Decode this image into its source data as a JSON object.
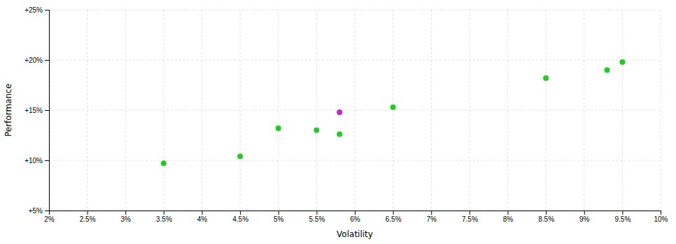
{
  "chart_data": {
    "type": "scatter",
    "xlabel": "Volatility",
    "ylabel": "Performance",
    "xlim": [
      0.02,
      0.1
    ],
    "ylim": [
      0.05,
      0.25
    ],
    "xticks": [
      {
        "value": 0.02,
        "label": "2%"
      },
      {
        "value": 0.025,
        "label": "2.5%"
      },
      {
        "value": 0.03,
        "label": "3%"
      },
      {
        "value": 0.035,
        "label": "3.5%"
      },
      {
        "value": 0.04,
        "label": "4%"
      },
      {
        "value": 0.045,
        "label": "4.5%"
      },
      {
        "value": 0.05,
        "label": "5%"
      },
      {
        "value": 0.055,
        "label": "5.5%"
      },
      {
        "value": 0.06,
        "label": "6%"
      },
      {
        "value": 0.065,
        "label": "6.5%"
      },
      {
        "value": 0.07,
        "label": "7%"
      },
      {
        "value": 0.075,
        "label": "7.5%"
      },
      {
        "value": 0.08,
        "label": "8%"
      },
      {
        "value": 0.085,
        "label": "8.5%"
      },
      {
        "value": 0.09,
        "label": "9%"
      },
      {
        "value": 0.095,
        "label": "9.5%"
      },
      {
        "value": 0.1,
        "label": "10%"
      }
    ],
    "yticks": [
      {
        "value": 0.05,
        "label": "+5%"
      },
      {
        "value": 0.1,
        "label": "+10%"
      },
      {
        "value": 0.15,
        "label": "+15%"
      },
      {
        "value": 0.2,
        "label": "+20%"
      },
      {
        "value": 0.25,
        "label": "+25%"
      }
    ],
    "grid": true,
    "series": [
      {
        "color": "#22cc22",
        "x": [
          0.035,
          0.045,
          0.05,
          0.055,
          0.058,
          0.065,
          0.085,
          0.093,
          0.095
        ],
        "values": [
          0.097,
          0.104,
          0.132,
          0.13,
          0.126,
          0.153,
          0.182,
          0.19,
          0.198
        ]
      },
      {
        "color": "#cc22cc",
        "x": [
          0.058
        ],
        "values": [
          0.148
        ]
      }
    ]
  }
}
